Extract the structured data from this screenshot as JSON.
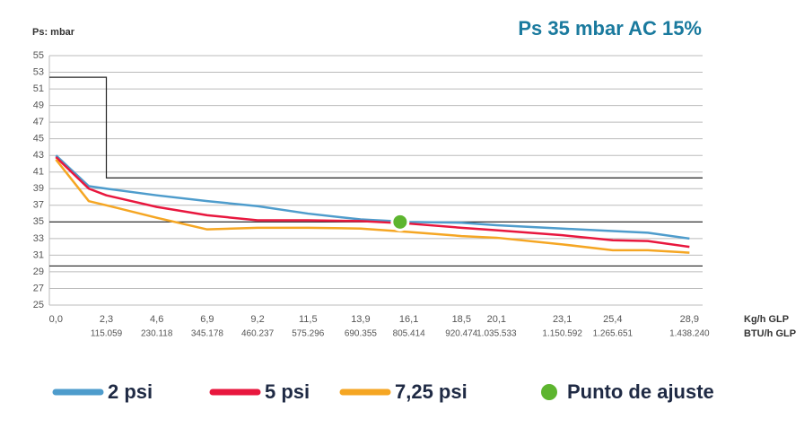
{
  "chart_data": {
    "type": "line",
    "title": "Ps 35 mbar AC 15%",
    "y_label": "Ps: mbar",
    "x_label": "Kg/h GLP",
    "x2_label": "BTU/h GLP",
    "x": [
      0,
      1.5,
      2.3,
      4.6,
      6.9,
      9.2,
      11.5,
      13.9,
      16.1,
      18.5,
      20.1,
      23.1,
      25.4,
      27,
      28.9
    ],
    "series": [
      {
        "name": "2 psi",
        "color": "#4e9ccc",
        "values": [
          43,
          39.3,
          39,
          38.2,
          37.5,
          36.9,
          36,
          35.3,
          35,
          34.9,
          34.6,
          34.2,
          33.9,
          33.7,
          33
        ]
      },
      {
        "name": "5 psi",
        "color": "#e8173e",
        "values": [
          42.8,
          39,
          38.2,
          36.8,
          35.8,
          35.2,
          35.2,
          35.1,
          34.8,
          34.3,
          34,
          33.4,
          32.8,
          32.7,
          32
        ]
      },
      {
        "name": "7,25 psi",
        "color": "#f5a623",
        "values": [
          42.5,
          37.5,
          37,
          35.5,
          34.1,
          34.3,
          34.3,
          34.2,
          33.8,
          33.3,
          33.1,
          32.3,
          31.6,
          31.6,
          31.3
        ]
      }
    ],
    "setpoint": {
      "name": "Punto de ajuste",
      "color": "#5db52f",
      "x": 15.7,
      "y": 35
    },
    "reference_lines": [
      {
        "x": [
          -0.3,
          2.3,
          2.3,
          29.5
        ],
        "y": [
          52.4,
          52.4,
          40.3,
          40.3
        ]
      },
      {
        "x": [
          -0.3,
          29.5
        ],
        "y": [
          35,
          35
        ]
      },
      {
        "x": [
          -0.3,
          29.5
        ],
        "y": [
          29.7,
          29.7
        ]
      }
    ],
    "xlim": [
      -0.3,
      29.5
    ],
    "ylim": [
      25,
      55
    ],
    "yticks": [
      25,
      27,
      29,
      31,
      33,
      35,
      37,
      39,
      41,
      43,
      45,
      47,
      49,
      51,
      53,
      55
    ],
    "xticks": [
      {
        "value": 0,
        "label": "0,0"
      },
      {
        "value": 2.3,
        "label": "2,3"
      },
      {
        "value": 4.6,
        "label": "4,6"
      },
      {
        "value": 6.9,
        "label": "6,9"
      },
      {
        "value": 9.2,
        "label": "9,2"
      },
      {
        "value": 11.5,
        "label": "11,5"
      },
      {
        "value": 13.9,
        "label": "13,9"
      },
      {
        "value": 16.1,
        "label": "16,1"
      },
      {
        "value": 18.5,
        "label": "18,5"
      },
      {
        "value": 20.1,
        "label": "20,1"
      },
      {
        "value": 23.1,
        "label": "23,1"
      },
      {
        "value": 25.4,
        "label": "25,4"
      },
      {
        "value": 28.9,
        "label": "28,9"
      }
    ],
    "x2tick_labels": [
      null,
      "115.059",
      "230.118",
      "345.178",
      "460.237",
      "575.296",
      "690.355",
      "805.414",
      "920.474",
      "1.035.533",
      "1.150.592",
      "1.265.651",
      "1.438.240"
    ],
    "grid": true
  }
}
